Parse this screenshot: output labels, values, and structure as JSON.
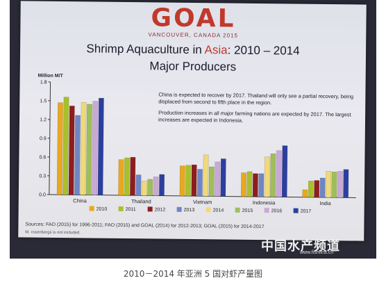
{
  "logo": {
    "word": "GOAL",
    "sub": "VANCOUVER, CANADA 2015"
  },
  "slide_title": {
    "line1_prefix": "Shrimp Aquaculture in ",
    "line1_highlight": "Asia",
    "line1_suffix": ": 2010 – 2014",
    "line2": "Major Producers"
  },
  "callout": [
    "China is expected to recover by 2017.  Thailand will only see a partial recovery, being displaced from second to fifth place in the region.",
    "Production increases in all major farming nations are expected by 2017.  The largest increases are expected in Indonesia."
  ],
  "source": "Sources:  FAO (2015) for 1996-2011; FAO (2015) and GOAL (2014) for 2012-2013; GOAL (2015) for 2014-2017",
  "note": "M. rosenbergii is not included.",
  "watermark": {
    "text": "中国水产频道",
    "url": "www.fishfirst.cn"
  },
  "caption": "2010－2014 年亚洲 5 国对虾产量图",
  "colors": {
    "2010": "#e8a81f",
    "2011": "#a9c02a",
    "2012": "#8e1d1d",
    "2013": "#6f86c4",
    "2014": "#f0d97a",
    "2015": "#9fbe5a",
    "2016": "#c9a8d6",
    "2017": "#2c3f9e"
  },
  "chart_data": {
    "type": "bar",
    "ylabel": "Million M/T",
    "ylim": [
      0,
      1.8
    ],
    "yticks": [
      "0.0",
      "0.3",
      "0.6",
      "0.9",
      "1.2",
      "1.5",
      "1.8"
    ],
    "grid": false,
    "legend_position": "bottom",
    "categories": [
      "China",
      "Thailand",
      "Vietnam",
      "Indonesia",
      "India"
    ],
    "series": [
      {
        "name": "2010",
        "values": [
          1.47,
          0.57,
          0.48,
          0.38,
          0.12
        ]
      },
      {
        "name": "2011",
        "values": [
          1.56,
          0.6,
          0.49,
          0.4,
          0.26
        ]
      },
      {
        "name": "2012",
        "values": [
          1.42,
          0.61,
          0.5,
          0.37,
          0.27
        ]
      },
      {
        "name": "2013",
        "values": [
          1.27,
          0.33,
          0.43,
          0.37,
          0.31
        ]
      },
      {
        "name": "2014",
        "values": [
          1.48,
          0.23,
          0.66,
          0.64,
          0.42
        ]
      },
      {
        "name": "2015",
        "values": [
          1.45,
          0.26,
          0.47,
          0.69,
          0.41
        ]
      },
      {
        "name": "2016",
        "values": [
          1.5,
          0.3,
          0.55,
          0.74,
          0.42
        ]
      },
      {
        "name": "2017",
        "values": [
          1.55,
          0.34,
          0.6,
          0.82,
          0.45
        ]
      }
    ]
  }
}
